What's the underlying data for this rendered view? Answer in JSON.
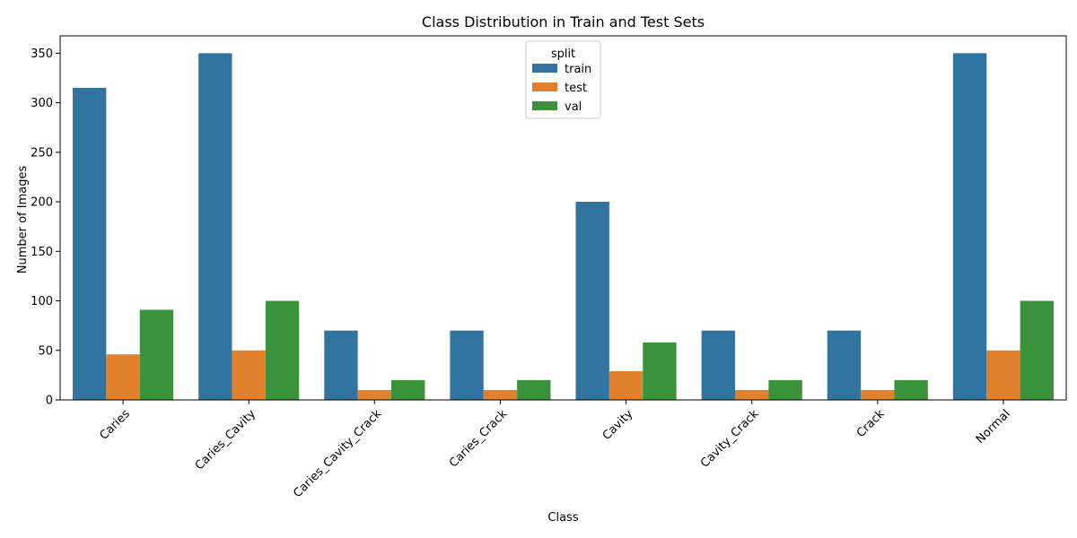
{
  "chart_data": {
    "type": "bar",
    "title": "Class Distribution in Train and Test Sets",
    "xlabel": "Class",
    "ylabel": "Number of Images",
    "categories": [
      "Caries",
      "Caries_Cavity",
      "Caries_Cavity_Crack",
      "Caries_Crack",
      "Cavity",
      "Cavity_Crack",
      "Crack",
      "Normal"
    ],
    "series": [
      {
        "name": "train",
        "color": "#3274a1",
        "values": [
          315,
          350,
          70,
          70,
          200,
          70,
          70,
          350
        ]
      },
      {
        "name": "test",
        "color": "#e1812c",
        "values": [
          46,
          50,
          10,
          10,
          29,
          10,
          10,
          50
        ]
      },
      {
        "name": "val",
        "color": "#3a923a",
        "values": [
          91,
          100,
          20,
          20,
          58,
          20,
          20,
          100
        ]
      }
    ],
    "ylim": [
      0,
      367.5
    ],
    "yticks": [
      0,
      50,
      100,
      150,
      200,
      250,
      300,
      350
    ],
    "legend": {
      "title": "split",
      "placement": "top-center"
    },
    "grid": false
  }
}
